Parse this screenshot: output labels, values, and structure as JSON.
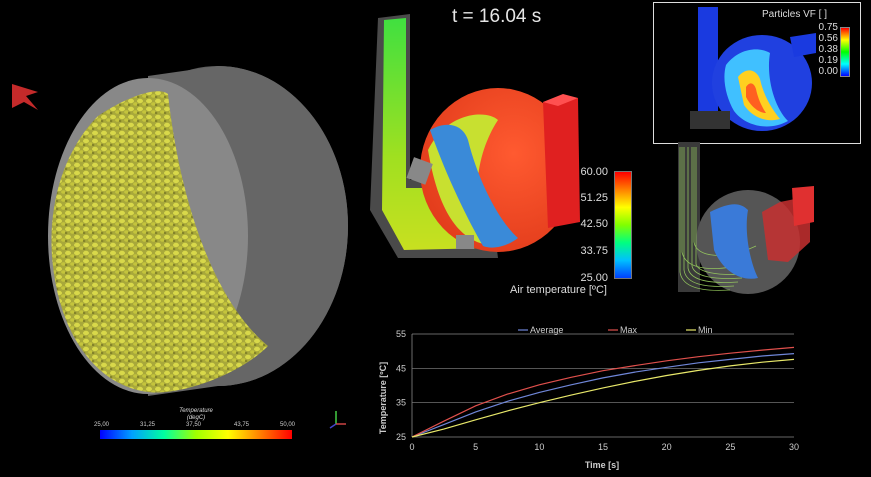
{
  "time_label": "t = 16.04 s",
  "particle_temp_scale": {
    "title_line1": "Temperature",
    "title_line2": "(degC)",
    "ticks": [
      "25,00",
      "31,25",
      "37,50",
      "43,75",
      "50,00"
    ]
  },
  "air_temp_scale": {
    "title": "Air temperature [ºC]",
    "ticks": [
      "60.00",
      "51.25",
      "42.50",
      "33.75",
      "25.00"
    ]
  },
  "particles_vf_scale": {
    "title": "Particles VF [ ]",
    "ticks": [
      "0.75",
      "0.56",
      "0.38",
      "0.19",
      "0.00"
    ]
  },
  "colors": {
    "background": "#000000",
    "average": "#6f86d8",
    "max": "#e0504c",
    "min": "#e8e86a",
    "particles": "#c8c832",
    "drum": "#7a7a7a"
  },
  "chart_data": {
    "type": "line",
    "xlabel": "Time [s]",
    "ylabel": "Temperature [ºC]",
    "xlim": [
      0,
      30
    ],
    "ylim": [
      25,
      55
    ],
    "xticks": [
      "0",
      "5",
      "10",
      "15",
      "20",
      "25",
      "30"
    ],
    "yticks": [
      "25",
      "35",
      "45",
      "55"
    ],
    "legend_position": "top",
    "x": [
      0,
      2.5,
      5,
      7.5,
      10,
      12.5,
      15,
      17.5,
      20,
      22.5,
      25,
      27.5,
      30
    ],
    "series": [
      {
        "name": "Average",
        "values": [
          25,
          28.6,
          32.3,
          35.4,
          38.0,
          40.2,
          42.2,
          43.9,
          45.3,
          46.6,
          47.6,
          48.6,
          49.3
        ]
      },
      {
        "name": "Max",
        "values": [
          25,
          29.6,
          34.1,
          37.5,
          40.2,
          42.4,
          44.3,
          45.8,
          47.2,
          48.4,
          49.4,
          50.3,
          51.1
        ]
      },
      {
        "name": "Min",
        "values": [
          25,
          27.3,
          30.0,
          32.6,
          35.0,
          37.2,
          39.3,
          41.2,
          42.9,
          44.4,
          45.7,
          46.8,
          47.6
        ]
      }
    ]
  }
}
